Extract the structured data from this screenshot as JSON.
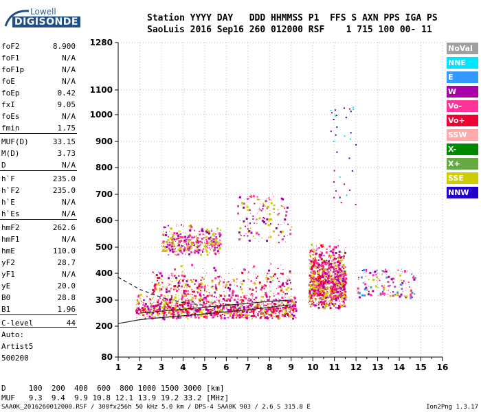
{
  "logo": {
    "line1": "Lowell",
    "line2": "DIGISONDE"
  },
  "header": {
    "row1": "Station YYYY DAY   DDD HHMMSS P1  FFS S AXN PPS IGA PS",
    "row2": "SaoLuis 2016 Sep16 260 012000 RSF    1 715 100 00- 11"
  },
  "params": [
    {
      "label": "foF2",
      "value": "8.900"
    },
    {
      "label": "foF1",
      "value": "N/A"
    },
    {
      "label": "foF1p",
      "value": "N/A"
    },
    {
      "label": "foE",
      "value": "N/A"
    },
    {
      "label": "foEp",
      "value": "0.42"
    },
    {
      "label": "fxI",
      "value": "9.05"
    },
    {
      "label": "foEs",
      "value": "N/A"
    },
    {
      "label": "fmin",
      "value": "1.75"
    },
    {
      "label": "MUF(D)",
      "value": "33.15"
    },
    {
      "label": "M(D)",
      "value": "3.73"
    },
    {
      "label": "D",
      "value": "N/A"
    },
    {
      "label": "h`F",
      "value": "235.0"
    },
    {
      "label": "h`F2",
      "value": "235.0"
    },
    {
      "label": "h`E",
      "value": "N/A"
    },
    {
      "label": "h`Es",
      "value": "N/A"
    },
    {
      "label": "hmF2",
      "value": "262.6"
    },
    {
      "label": "hmF1",
      "value": "N/A"
    },
    {
      "label": "hmE",
      "value": "110.0"
    },
    {
      "label": "yF2",
      "value": "28.7"
    },
    {
      "label": "yF1",
      "value": "N/A"
    },
    {
      "label": "yE",
      "value": "20.0"
    },
    {
      "label": "B0",
      "value": "28.8"
    },
    {
      "label": "B1",
      "value": "1.96"
    },
    {
      "label": "C-level",
      "value": "44"
    }
  ],
  "aux": {
    "line1": "Auto:",
    "line2": "Artist5",
    "line3": "500200"
  },
  "legend": [
    {
      "label": "NoVal",
      "color": "#a0a0a0"
    },
    {
      "label": "NNE",
      "color": "#00e5ff"
    },
    {
      "label": "E",
      "color": "#3399ff"
    },
    {
      "label": "W",
      "color": "#aa00aa"
    },
    {
      "label": "Vo-",
      "color": "#ff3399"
    },
    {
      "label": "Vo+",
      "color": "#ee0033"
    },
    {
      "label": "SSW",
      "color": "#ffaaaa"
    },
    {
      "label": "X-",
      "color": "#008800"
    },
    {
      "label": "X+",
      "color": "#66aa44"
    },
    {
      "label": "SSE",
      "color": "#cccc00"
    },
    {
      "label": "NNW",
      "color": "#2200cc"
    }
  ],
  "distance_table": {
    "d_row": "D     100  200  400  600  800 1000 1500 3000 [km]",
    "muf_row": "MUF   9.3  9.4  9.9 10.8 12.1 13.9 19.2 33.2 [MHz]"
  },
  "footer": {
    "left": "SAA0K_2016260012000.RSF / 300fx256h 50 kHz 5.0 km / DPS-4 SAA0K 903 / 2.6 S 315.8 E",
    "right": "Ion2Png 1.3.17"
  },
  "chart_data": {
    "type": "scatter",
    "x_ticks": [
      1,
      2,
      3,
      4,
      5,
      6,
      7,
      8,
      9,
      10,
      11,
      12,
      13,
      14,
      15,
      16
    ],
    "y_ticks": [
      80,
      200,
      300,
      400,
      500,
      600,
      700,
      800,
      900,
      1000,
      1100,
      1280
    ],
    "xlim": [
      1,
      16
    ],
    "ylim": [
      80,
      1280
    ],
    "x_unit": "MHz",
    "y_unit": "km",
    "trace_clusters": [
      {
        "x_range": [
          1.8,
          9.2
        ],
        "h_range": [
          230,
          330
        ],
        "density": "high",
        "colors": [
          "#ee0033",
          "#ff3399",
          "#aa00aa",
          "#cccc00"
        ]
      },
      {
        "x_range": [
          2.5,
          9.0
        ],
        "h_range": [
          300,
          440
        ],
        "density": "medium",
        "colors": [
          "#cccc00",
          "#aa00aa",
          "#ee0033",
          "#ff3399"
        ]
      },
      {
        "x_range": [
          3.0,
          5.7
        ],
        "h_range": [
          470,
          600
        ],
        "density": "medium",
        "colors": [
          "#cccc00",
          "#aa00aa",
          "#ff3399"
        ]
      },
      {
        "x_range": [
          6.5,
          9.0
        ],
        "h_range": [
          520,
          700
        ],
        "density": "low",
        "colors": [
          "#aa00aa",
          "#ff3399",
          "#cccc00"
        ]
      },
      {
        "x_range": [
          9.8,
          11.5
        ],
        "h_range": [
          270,
          530
        ],
        "density": "high",
        "colors": [
          "#ee0033",
          "#cccc00",
          "#ff3399",
          "#aa00aa"
        ]
      },
      {
        "x_range": [
          12.0,
          14.7
        ],
        "h_range": [
          310,
          420
        ],
        "density": "low",
        "colors": [
          "#ff3399",
          "#aa00aa",
          "#3399ff",
          "#cccc00"
        ]
      },
      {
        "x_range": [
          10.8,
          12.0
        ],
        "h_range": [
          600,
          1050
        ],
        "density": "sparse",
        "colors": [
          "#2200cc",
          "#00e5ff",
          "#aa00aa",
          "#ee0033"
        ]
      }
    ],
    "profile_curve": [
      [
        1,
        210
      ],
      [
        2,
        225
      ],
      [
        3,
        233
      ],
      [
        4,
        240
      ],
      [
        5,
        247
      ],
      [
        6,
        255
      ],
      [
        7,
        263
      ],
      [
        8,
        272
      ],
      [
        9,
        282
      ]
    ],
    "dashed_curve": [
      [
        1,
        385
      ],
      [
        2,
        340
      ],
      [
        3,
        310
      ],
      [
        4,
        290
      ],
      [
        5,
        280
      ]
    ],
    "secondary_curve": [
      [
        2,
        250
      ],
      [
        4,
        265
      ],
      [
        6,
        280
      ],
      [
        8,
        295
      ],
      [
        9,
        300
      ]
    ]
  }
}
